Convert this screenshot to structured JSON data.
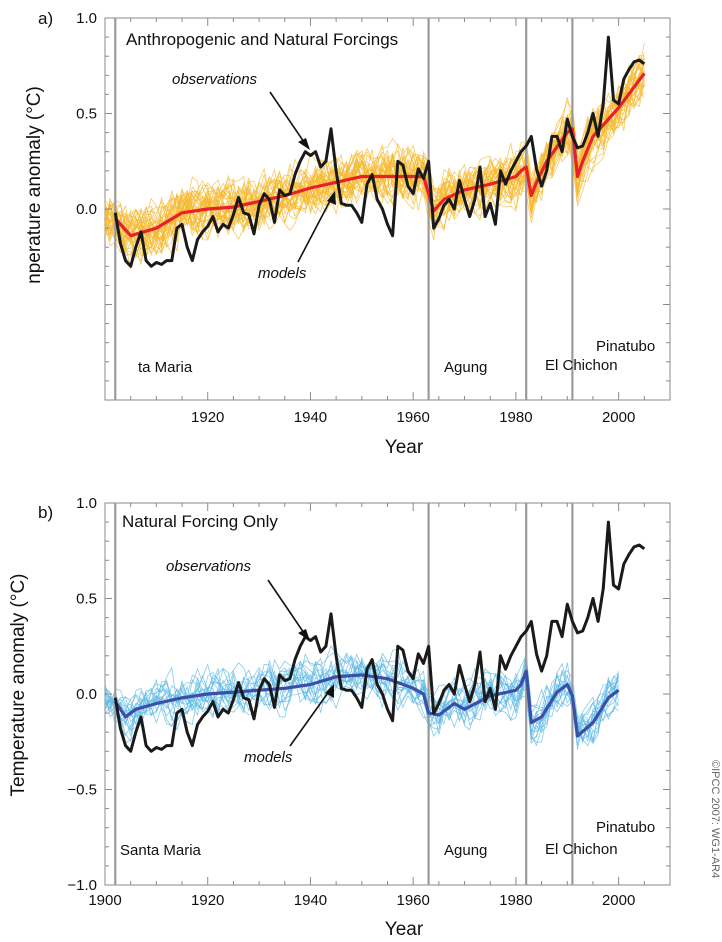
{
  "colors": {
    "obs": "#1a1a1a",
    "model_mean_a": "#e8202a",
    "model_runs_a": "#f5b82e",
    "model_mean_b": "#3b4fa8",
    "model_runs_b": "#5cb8e6",
    "volcano_line": "#9a9a9a",
    "frame": "#8a8a8a"
  },
  "credit": "©IPCC  2007: WG1-AR4",
  "chart_data": [
    {
      "type": "line",
      "panel_label": "a)",
      "title": "Anthropogenic and Natural Forcings",
      "ylabel": "nperature anomaly (°C)",
      "xlabel": "Year",
      "xlim": [
        1900,
        2010
      ],
      "ylim": [
        -1.0,
        1.0
      ],
      "yticks": [
        "1.0",
        "0.5",
        "0.0"
      ],
      "xticks": [
        "1920",
        "1940",
        "1960",
        "1980",
        "2000"
      ],
      "volcanoes": [
        {
          "name": "ta Maria",
          "year": 1902
        },
        {
          "name": "Agung",
          "year": 1963
        },
        {
          "name": "El Chichon",
          "year": 1982
        },
        {
          "name": "Pinatubo",
          "year": 1991
        }
      ],
      "annotations": {
        "observations": "observations",
        "models": "models"
      },
      "series": [
        {
          "name": "observations",
          "x": [
            1902,
            1903,
            1904,
            1905,
            1906,
            1907,
            1908,
            1909,
            1910,
            1911,
            1912,
            1913,
            1914,
            1915,
            1916,
            1917,
            1918,
            1919,
            1920,
            1921,
            1922,
            1923,
            1924,
            1925,
            1926,
            1927,
            1928,
            1929,
            1930,
            1931,
            1932,
            1933,
            1934,
            1935,
            1936,
            1937,
            1938,
            1939,
            1940,
            1941,
            1942,
            1943,
            1944,
            1945,
            1946,
            1947,
            1948,
            1949,
            1950,
            1951,
            1952,
            1953,
            1954,
            1955,
            1956,
            1957,
            1958,
            1959,
            1960,
            1961,
            1962,
            1963,
            1964,
            1965,
            1966,
            1967,
            1968,
            1969,
            1970,
            1971,
            1972,
            1973,
            1974,
            1975,
            1976,
            1977,
            1978,
            1979,
            1980,
            1981,
            1982,
            1983,
            1984,
            1985,
            1986,
            1987,
            1988,
            1989,
            1990,
            1991,
            1992,
            1993,
            1994,
            1995,
            1996,
            1997,
            1998,
            1999,
            2000,
            2001,
            2002,
            2003,
            2004,
            2005
          ],
          "y": [
            -0.02,
            -0.18,
            -0.27,
            -0.3,
            -0.2,
            -0.12,
            -0.27,
            -0.3,
            -0.28,
            -0.29,
            -0.27,
            -0.27,
            -0.1,
            -0.08,
            -0.2,
            -0.27,
            -0.16,
            -0.12,
            -0.09,
            -0.04,
            -0.12,
            -0.08,
            -0.1,
            -0.03,
            0.06,
            -0.02,
            -0.03,
            -0.13,
            0.02,
            0.08,
            0.05,
            -0.07,
            0.1,
            0.07,
            0.08,
            0.18,
            0.25,
            0.3,
            0.28,
            0.3,
            0.22,
            0.25,
            0.42,
            0.2,
            0.03,
            0.02,
            0.02,
            -0.02,
            -0.07,
            0.13,
            0.18,
            0.05,
            0.0,
            -0.08,
            -0.14,
            0.25,
            0.23,
            0.12,
            0.08,
            0.21,
            0.16,
            0.25,
            -0.1,
            -0.05,
            0.02,
            0.05,
            0.0,
            0.15,
            0.05,
            -0.04,
            0.05,
            0.22,
            -0.04,
            0.03,
            -0.08,
            0.2,
            0.13,
            0.2,
            0.25,
            0.3,
            0.33,
            0.38,
            0.21,
            0.12,
            0.2,
            0.38,
            0.38,
            0.3,
            0.47,
            0.38,
            0.32,
            0.33,
            0.4,
            0.5,
            0.38,
            0.55,
            0.9,
            0.57,
            0.55,
            0.68,
            0.73,
            0.77,
            0.78,
            0.76
          ]
        },
        {
          "name": "models",
          "x": [
            1902,
            1905,
            1910,
            1915,
            1920,
            1925,
            1930,
            1935,
            1940,
            1945,
            1950,
            1955,
            1960,
            1962,
            1964,
            1966,
            1970,
            1975,
            1980,
            1981,
            1982,
            1983,
            1984,
            1986,
            1990,
            1991,
            1992,
            1993,
            1995,
            2000,
            2005
          ],
          "y": [
            -0.05,
            -0.14,
            -0.1,
            -0.02,
            0.0,
            0.01,
            0.04,
            0.07,
            0.11,
            0.14,
            0.17,
            0.17,
            0.17,
            0.17,
            -0.01,
            0.05,
            0.1,
            0.13,
            0.17,
            0.2,
            0.22,
            0.07,
            0.14,
            0.25,
            0.4,
            0.42,
            0.17,
            0.25,
            0.38,
            0.53,
            0.71
          ]
        }
      ]
    },
    {
      "type": "line",
      "panel_label": "b)",
      "title": "Natural Forcing Only",
      "ylabel": "Temperature anomaly (°C)",
      "xlabel": "Year",
      "xlim": [
        1900,
        2010
      ],
      "ylim": [
        -1.0,
        1.0
      ],
      "yticks": [
        "1.0",
        "0.5",
        "0.0",
        "−0.5",
        "−1.0"
      ],
      "xticks": [
        "1900",
        "1920",
        "1940",
        "1960",
        "1980",
        "2000"
      ],
      "volcanoes": [
        {
          "name": "Santa Maria",
          "year": 1902
        },
        {
          "name": "Agung",
          "year": 1963
        },
        {
          "name": "El Chichon",
          "year": 1982
        },
        {
          "name": "Pinatubo",
          "year": 1991
        }
      ],
      "annotations": {
        "observations": "observations",
        "models": "models"
      },
      "series": [
        {
          "name": "observations",
          "x": [
            1902,
            1903,
            1904,
            1905,
            1906,
            1907,
            1908,
            1909,
            1910,
            1911,
            1912,
            1913,
            1914,
            1915,
            1916,
            1917,
            1918,
            1919,
            1920,
            1921,
            1922,
            1923,
            1924,
            1925,
            1926,
            1927,
            1928,
            1929,
            1930,
            1931,
            1932,
            1933,
            1934,
            1935,
            1936,
            1937,
            1938,
            1939,
            1940,
            1941,
            1942,
            1943,
            1944,
            1945,
            1946,
            1947,
            1948,
            1949,
            1950,
            1951,
            1952,
            1953,
            1954,
            1955,
            1956,
            1957,
            1958,
            1959,
            1960,
            1961,
            1962,
            1963,
            1964,
            1965,
            1966,
            1967,
            1968,
            1969,
            1970,
            1971,
            1972,
            1973,
            1974,
            1975,
            1976,
            1977,
            1978,
            1979,
            1980,
            1981,
            1982,
            1983,
            1984,
            1985,
            1986,
            1987,
            1988,
            1989,
            1990,
            1991,
            1992,
            1993,
            1994,
            1995,
            1996,
            1997,
            1998,
            1999,
            2000,
            2001,
            2002,
            2003,
            2004,
            2005
          ],
          "y": [
            -0.02,
            -0.18,
            -0.27,
            -0.3,
            -0.2,
            -0.12,
            -0.27,
            -0.3,
            -0.28,
            -0.29,
            -0.27,
            -0.27,
            -0.1,
            -0.08,
            -0.2,
            -0.27,
            -0.16,
            -0.12,
            -0.09,
            -0.04,
            -0.12,
            -0.08,
            -0.1,
            -0.03,
            0.06,
            -0.02,
            -0.03,
            -0.13,
            0.02,
            0.08,
            0.05,
            -0.07,
            0.1,
            0.07,
            0.08,
            0.18,
            0.25,
            0.3,
            0.28,
            0.3,
            0.22,
            0.25,
            0.42,
            0.2,
            0.03,
            0.02,
            0.02,
            -0.02,
            -0.07,
            0.13,
            0.18,
            0.05,
            0.0,
            -0.08,
            -0.14,
            0.25,
            0.23,
            0.12,
            0.08,
            0.21,
            0.16,
            0.25,
            -0.1,
            -0.05,
            0.02,
            0.05,
            0.0,
            0.15,
            0.05,
            -0.04,
            0.05,
            0.22,
            -0.04,
            0.03,
            -0.08,
            0.2,
            0.13,
            0.2,
            0.25,
            0.3,
            0.33,
            0.38,
            0.21,
            0.12,
            0.2,
            0.38,
            0.38,
            0.3,
            0.47,
            0.38,
            0.32,
            0.33,
            0.4,
            0.5,
            0.38,
            0.55,
            0.9,
            0.57,
            0.55,
            0.68,
            0.73,
            0.77,
            0.78,
            0.76
          ]
        },
        {
          "name": "models",
          "x": [
            1902,
            1904,
            1906,
            1910,
            1915,
            1920,
            1925,
            1930,
            1935,
            1940,
            1945,
            1950,
            1955,
            1960,
            1962,
            1963,
            1965,
            1968,
            1970,
            1975,
            1980,
            1981,
            1982,
            1983,
            1985,
            1988,
            1990,
            1991,
            1992,
            1995,
            1998,
            2000
          ],
          "y": [
            -0.04,
            -0.12,
            -0.08,
            -0.05,
            -0.02,
            0.0,
            0.01,
            0.02,
            0.03,
            0.05,
            0.09,
            0.1,
            0.08,
            0.03,
            0.0,
            -0.1,
            -0.11,
            -0.05,
            -0.08,
            -0.01,
            0.02,
            0.05,
            0.12,
            -0.15,
            -0.12,
            0.01,
            0.05,
            -0.01,
            -0.22,
            -0.15,
            -0.02,
            0.02
          ]
        }
      ]
    }
  ]
}
